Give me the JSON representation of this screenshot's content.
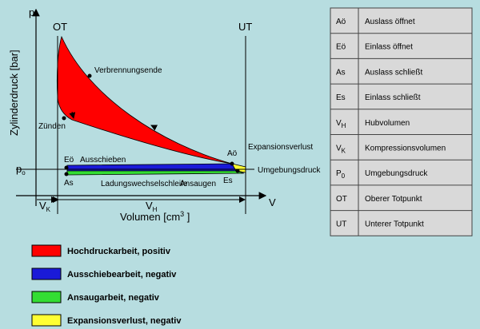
{
  "axes": {
    "y_symbol": "p",
    "y_label": "Zylinderdruck [bar]",
    "x_symbol": "V",
    "x_label": "Volumen [cm",
    "x_label_sup": "3",
    "x_label_end": " ]"
  },
  "markers": {
    "ot": "OT",
    "ut": "UT"
  },
  "pressure": {
    "symbol": "p",
    "sub": "o",
    "label": "Umgebungsdruck"
  },
  "volumes": {
    "vk": {
      "symbol": "V",
      "sub": "K"
    },
    "vh": {
      "symbol": "V",
      "sub": "H"
    }
  },
  "points": [
    {
      "label": "Verbrennungsende"
    },
    {
      "label": "Zünden"
    },
    {
      "label": "Eö"
    },
    {
      "label": "As"
    },
    {
      "label": "Aö"
    },
    {
      "label": "Es"
    }
  ],
  "annotations": [
    "Ausschieben",
    "Ladungswechselschleife",
    "Ansaugen",
    "Expansionsverlust"
  ],
  "table": {
    "rows": [
      {
        "symbol": "Aö",
        "meaning": "Auslass öffnet"
      },
      {
        "symbol": "Eö",
        "meaning": "Einlass öffnet"
      },
      {
        "symbol": "As",
        "meaning": "Auslass schließt"
      },
      {
        "symbol": "Es",
        "meaning": "Einlass schließt"
      },
      {
        "symbol": "V",
        "sub": "H",
        "meaning": "Hubvolumen"
      },
      {
        "symbol": "V",
        "sub": "K",
        "meaning": "Kompressionsvolumen"
      },
      {
        "symbol": "P",
        "sub": "0",
        "meaning": "Umgebungsdruck"
      },
      {
        "symbol": "OT",
        "meaning": "Oberer Totpunkt"
      },
      {
        "symbol": "UT",
        "meaning": "Unterer Totpunkt"
      }
    ]
  },
  "legend": [
    {
      "color": "#ff0000",
      "label": "Hochdruckarbeit, positiv"
    },
    {
      "color": "#1a1ad8",
      "label": "Ausschiebearbeit, negativ"
    },
    {
      "color": "#33dd33",
      "label": "Ansaugarbeit, negativ"
    },
    {
      "color": "#ffff33",
      "label": "Expansionsverlust, negativ"
    }
  ]
}
